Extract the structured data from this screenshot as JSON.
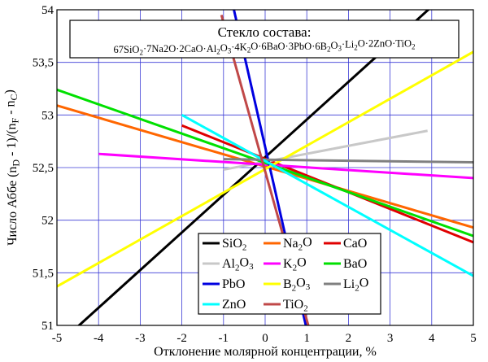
{
  "chart_data": {
    "type": "line",
    "title_line1": "Стекло состава:",
    "title_line2_parts": [
      [
        "67SiO",
        ""
      ],
      [
        "2",
        "sub"
      ],
      [
        "·7Na2O·2CaO·Al",
        ""
      ],
      [
        "2",
        "sub"
      ],
      [
        "O",
        ""
      ],
      [
        "3",
        "sub"
      ],
      [
        "·4K",
        ""
      ],
      [
        "2",
        "sub"
      ],
      [
        "O·6BaO·3PbO·6B",
        ""
      ],
      [
        "2",
        "sub"
      ],
      [
        "O",
        ""
      ],
      [
        "3",
        "sub"
      ],
      [
        "·Li",
        ""
      ],
      [
        "2",
        "sub"
      ],
      [
        "O·2ZnO·TiO",
        ""
      ],
      [
        "2",
        "sub"
      ]
    ],
    "xlabel": "Отклонение молярной концентрации, %",
    "ylabel_parts": [
      [
        "Число Аббе (n",
        ""
      ],
      [
        "D",
        "sub"
      ],
      [
        " - 1)/(n",
        ""
      ],
      [
        "F",
        "sub"
      ],
      [
        " - n",
        ""
      ],
      [
        "C",
        "sub"
      ],
      [
        ")",
        ""
      ]
    ],
    "xlim": [
      -5,
      5
    ],
    "ylim": [
      51,
      54
    ],
    "xticks": [
      -5,
      -4,
      -3,
      -2,
      -1,
      0,
      1,
      2,
      3,
      4,
      5
    ],
    "xtick_labels": [
      "-5",
      "-4",
      "-3",
      "-2",
      "-1",
      "0",
      "1",
      "2",
      "3",
      "4",
      "5"
    ],
    "yticks": [
      51,
      51.5,
      52,
      52.5,
      53,
      53.5,
      54
    ],
    "ytick_labels": [
      "51",
      "51,5",
      "52",
      "52,5",
      "53",
      "53,5",
      "54"
    ],
    "grid": true,
    "series": [
      {
        "name": "SiO2",
        "label_parts": [
          [
            "SiO",
            ""
          ],
          [
            "2",
            "sub"
          ]
        ],
        "color": "#000000",
        "x": [
          -5,
          4
        ],
        "y": [
          50.81,
          54.03
        ]
      },
      {
        "name": "Na2O",
        "label_parts": [
          [
            "Na",
            ""
          ],
          [
            "2",
            "sub"
          ],
          [
            "O",
            ""
          ]
        ],
        "color": "#ff6600",
        "x": [
          -5,
          5
        ],
        "y": [
          53.09,
          51.93
        ]
      },
      {
        "name": "CaO",
        "label_parts": [
          [
            "CaO",
            ""
          ]
        ],
        "color": "#e00000",
        "x": [
          -2,
          5
        ],
        "y": [
          52.9,
          51.79
        ]
      },
      {
        "name": "Al2O3",
        "label_parts": [
          [
            "Al",
            ""
          ],
          [
            "2",
            "sub"
          ],
          [
            "O",
            ""
          ],
          [
            "3",
            "sub"
          ]
        ],
        "color": "#c8c8c8",
        "x": [
          -1,
          3.9
        ],
        "y": [
          52.48,
          52.85
        ]
      },
      {
        "name": "K2O",
        "label_parts": [
          [
            "K",
            ""
          ],
          [
            "2",
            "sub"
          ],
          [
            "O",
            ""
          ]
        ],
        "color": "#ff00ff",
        "x": [
          -4,
          5
        ],
        "y": [
          52.63,
          52.4
        ]
      },
      {
        "name": "BaO",
        "label_parts": [
          [
            "BaO",
            ""
          ]
        ],
        "color": "#00e000",
        "x": [
          -5,
          5
        ],
        "y": [
          53.24,
          51.85
        ]
      },
      {
        "name": "PbO",
        "label_parts": [
          [
            "PbO",
            ""
          ]
        ],
        "color": "#0000e0",
        "x": [
          -0.75,
          1.0
        ],
        "y": [
          54.0,
          50.96
        ]
      },
      {
        "name": "B2O3",
        "label_parts": [
          [
            "B",
            ""
          ],
          [
            "2",
            "sub"
          ],
          [
            "O",
            ""
          ],
          [
            "3",
            "sub"
          ]
        ],
        "color": "#ffff00",
        "x": [
          -5,
          5
        ],
        "y": [
          51.37,
          53.6
        ]
      },
      {
        "name": "Li2O",
        "label_parts": [
          [
            "Li",
            ""
          ],
          [
            "2",
            "sub"
          ],
          [
            "O",
            ""
          ]
        ],
        "color": "#808080",
        "x": [
          -1,
          5
        ],
        "y": [
          52.58,
          52.55
        ]
      },
      {
        "name": "ZnO",
        "label_parts": [
          [
            "ZnO",
            ""
          ]
        ],
        "color": "#00ffff",
        "x": [
          -2,
          5
        ],
        "y": [
          53.0,
          51.47
        ]
      },
      {
        "name": "TiO2",
        "label_parts": [
          [
            "TiO",
            ""
          ],
          [
            "2",
            "sub"
          ]
        ],
        "color": "#c04848",
        "x": [
          -1.05,
          1.05
        ],
        "y": [
          53.95,
          50.98
        ]
      }
    ],
    "legend_position": "bottom-center"
  }
}
